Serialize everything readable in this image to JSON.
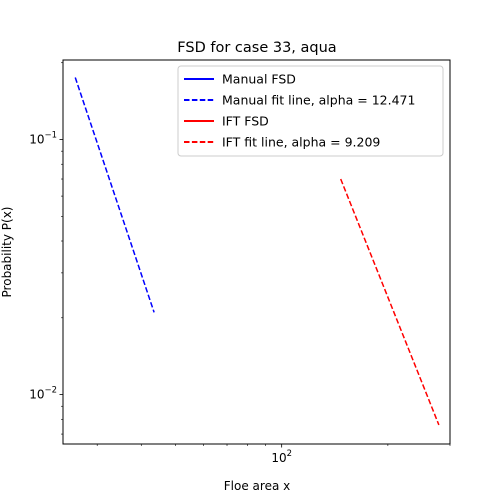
{
  "chart_data": {
    "type": "line",
    "title": "FSD for case 33, aqua",
    "xlabel": "Floe area x",
    "ylabel": "Probability P(x)",
    "xscale": "log",
    "yscale": "log",
    "xlim": [
      24,
      300
    ],
    "ylim": [
      0.0064,
      0.205
    ],
    "grid": false,
    "legend_position": "top-right",
    "x_ticks": [
      {
        "value": 100,
        "base": "10",
        "exp": "2"
      }
    ],
    "x_minor_ticks": [
      30,
      40,
      50,
      60,
      70,
      80,
      90,
      200,
      300
    ],
    "y_ticks": [
      {
        "value": 0.01,
        "base": "10",
        "exp": "−2"
      },
      {
        "value": 0.1,
        "base": "10",
        "exp": "−1"
      }
    ],
    "y_minor_ticks": [
      0.007,
      0.008,
      0.009,
      0.02,
      0.03,
      0.04,
      0.05,
      0.06,
      0.07,
      0.08,
      0.09,
      0.2
    ],
    "series": [
      {
        "name": "Manual FSD",
        "color": "#0000ff",
        "style": "solid",
        "x": [],
        "y": []
      },
      {
        "name": "Manual fit line, alpha = 12.471",
        "color": "#0000ff",
        "style": "dashed",
        "x": [
          26,
          43.5
        ],
        "y": [
          0.175,
          0.021
        ]
      },
      {
        "name": "IFT FSD",
        "color": "#ff0000",
        "style": "solid",
        "x": [],
        "y": []
      },
      {
        "name": "IFT fit line, alpha = 9.209",
        "color": "#ff0000",
        "style": "dashed",
        "x": [
          147,
          279
        ],
        "y": [
          0.07,
          0.0076
        ]
      }
    ]
  }
}
